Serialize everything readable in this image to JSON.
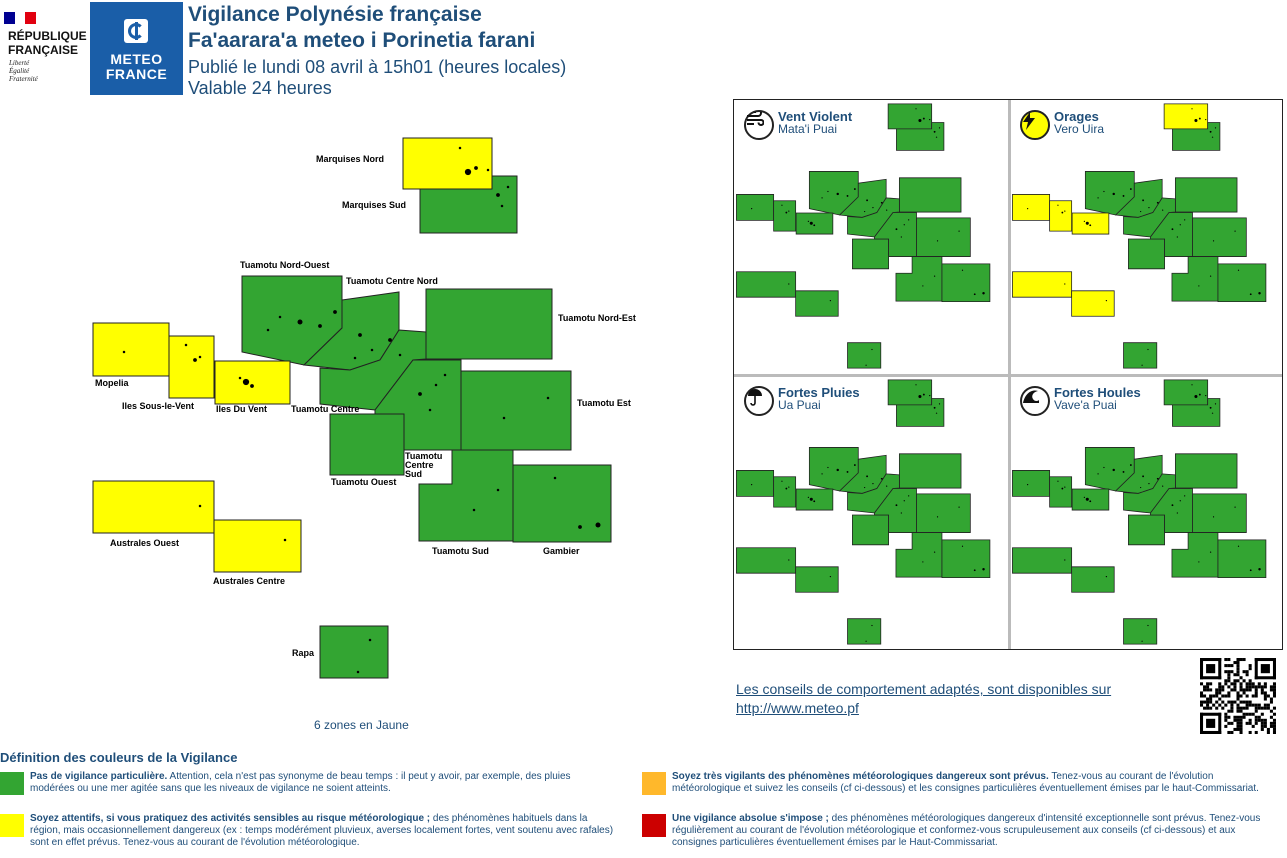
{
  "header": {
    "republique_line1": "RÉPUBLIQUE",
    "republique_line2": "FRANÇAISE",
    "motto": [
      "Liberté",
      "Égalité",
      "Fraternité"
    ],
    "meteo_word1": "METEO",
    "meteo_word2": "FRANCE",
    "title_fr": "Vigilance Polynésie française",
    "title_tah": "Fa'aarara'a meteo i Porinetia farani",
    "published": "Publié le lundi 08 avril à 15h01 (heures locales)",
    "validity": "Valable 24 heures"
  },
  "colors": {
    "green": "#33a532",
    "yellow": "#ffff00",
    "orange": "#ffb82b",
    "red": "#cc0000"
  },
  "zones": {
    "marquises_nord": {
      "label": "Marquises Nord",
      "level": "yellow"
    },
    "marquises_sud": {
      "label": "Marquises Sud",
      "level": "green"
    },
    "tuamotu_nord_ouest": {
      "label": "Tuamotu Nord-Ouest",
      "level": "green"
    },
    "tuamotu_centre_nord": {
      "label": "Tuamotu Centre Nord",
      "level": "green"
    },
    "tuamotu_nord_est": {
      "label": "Tuamotu Nord-Est",
      "level": "green"
    },
    "mopelia": {
      "label": "Mopelia",
      "level": "yellow"
    },
    "iles_sous_le_vent": {
      "label": "Iles Sous-le-Vent",
      "level": "yellow"
    },
    "iles_du_vent": {
      "label": "Iles Du Vent",
      "level": "yellow"
    },
    "tuamotu_centre": {
      "label": "Tuamotu Centre",
      "level": "green"
    },
    "tuamotu_est": {
      "label": "Tuamotu Est",
      "level": "green"
    },
    "tuamotu_ouest": {
      "label": "Tuamotu Ouest",
      "level": "green"
    },
    "tuamotu_centre_sud": {
      "label_lines": [
        "Tuamotu",
        "Centre",
        "Sud"
      ],
      "level": "green"
    },
    "australes_ouest": {
      "label": "Australes Ouest",
      "level": "yellow"
    },
    "australes_centre": {
      "label": "Australes Centre",
      "level": "yellow"
    },
    "tuamotu_sud": {
      "label": "Tuamotu Sud",
      "level": "green"
    },
    "gambier": {
      "label": "Gambier",
      "level": "green"
    },
    "rapa": {
      "label": "Rapa",
      "level": "green"
    }
  },
  "zones_summary": "6 zones en Jaune",
  "panels": [
    {
      "title": "Vent Violent",
      "subtitle": "Mata'i Puai",
      "icon": "wind-icon",
      "yellow_zones": []
    },
    {
      "title": "Orages",
      "subtitle": "Vero Uira",
      "icon": "lightning-icon",
      "yellow_zones": [
        "marquises_nord",
        "mopelia",
        "iles_sous_le_vent",
        "iles_du_vent",
        "australes_ouest",
        "australes_centre"
      ]
    },
    {
      "title": "Fortes Pluies",
      "subtitle": "Ua Puai",
      "icon": "rain-icon",
      "yellow_zones": []
    },
    {
      "title": "Fortes Houles",
      "subtitle": "Vave'a Puai",
      "icon": "wave-icon",
      "yellow_zones": []
    }
  ],
  "advice": {
    "line1": "Les conseils de comportement adaptés, sont disponibles sur",
    "line2": "http://www.meteo.pf"
  },
  "legend": {
    "title": "Définition des couleurs de la Vigilance",
    "green": {
      "bold": "Pas de vigilance particulière.",
      "text": " Attention, cela n'est pas synonyme de beau temps : il peut y avoir, par exemple, des pluies modérées ou une mer agitée sans que les niveaux de vigilance ne soient atteints."
    },
    "yellow": {
      "bold": "Soyez attentifs, si vous pratiquez des activités sensibles au risque météorologique ;",
      "text": " des phénomènes habituels dans la région, mais occasionnellement dangereux (ex : temps modérément pluvieux, averses localement fortes, vent soutenu avec rafales) sont en effet prévus. Tenez-vous au courant de l'évolution météorologique."
    },
    "orange": {
      "bold": "Soyez très vigilants des phénomènes météorologiques dangereux sont prévus.",
      "text": " Tenez-vous au courant de l'évolution météorologique et suivez les conseils (cf ci-dessous) et les consignes particulières éventuellement émises par le haut-Commissariat."
    },
    "red": {
      "bold": "Une vigilance absolue s'impose ;",
      "text": " des phénomènes météorologiques dangereux d'intensité exceptionnelle sont prévus. Tenez-vous régulièrement au courant de l'évolution météorologique et conformez-vous scrupuleusement aux conseils (cf ci-dessous) et aux consignes particulières éventuellement émises par le Haut-Commissariat."
    }
  }
}
